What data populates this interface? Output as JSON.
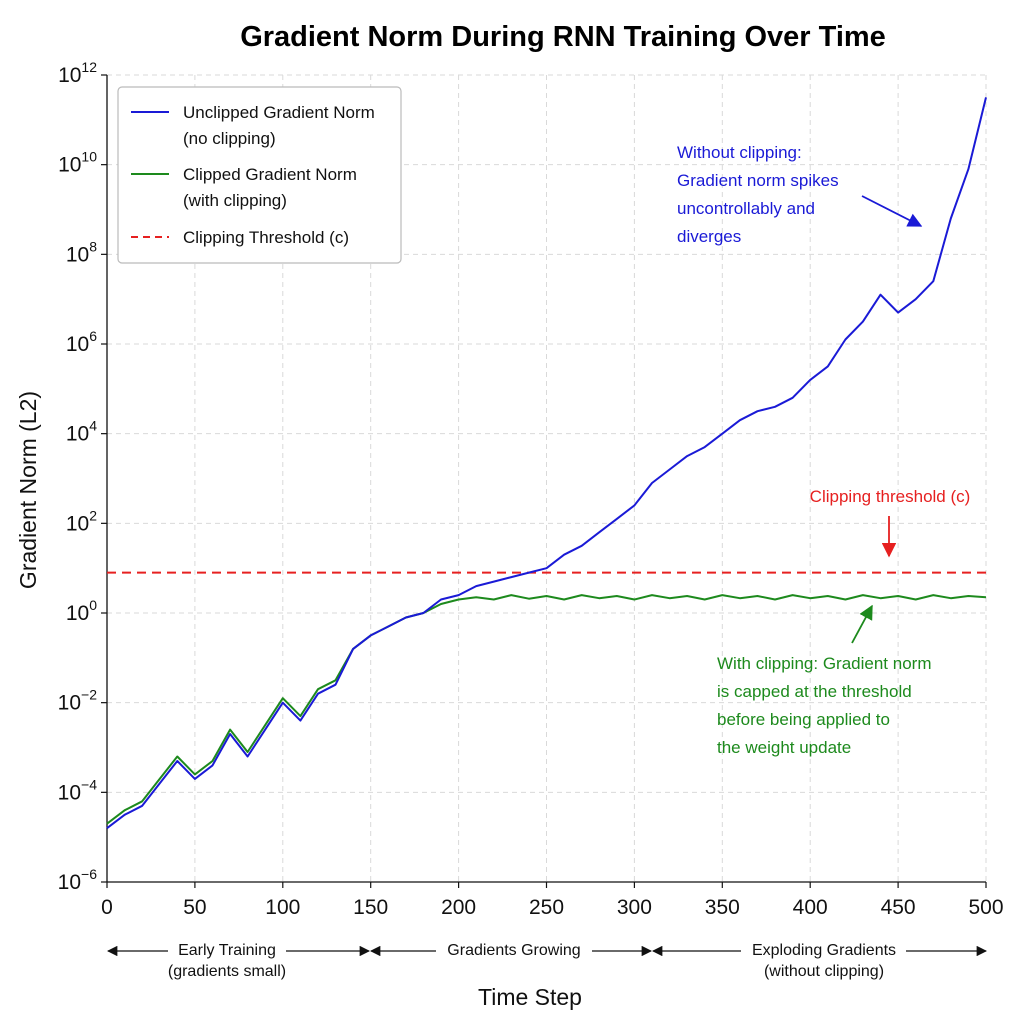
{
  "chart_data": {
    "type": "line",
    "title": "Gradient Norm During RNN Training Over Time",
    "xlabel": "Time Step",
    "ylabel": "Gradient Norm (L2)",
    "xlim": [
      0,
      500
    ],
    "ylim_log10": [
      -6,
      12
    ],
    "y_scale": "log",
    "grid": true,
    "legend_position": "top-left",
    "x_ticks": [
      0,
      50,
      100,
      150,
      200,
      250,
      300,
      350,
      400,
      450,
      500
    ],
    "y_ticks": [
      {
        "base": "10",
        "exp": "12"
      },
      {
        "base": "10",
        "exp": "10"
      },
      {
        "base": "10",
        "exp": "8"
      },
      {
        "base": "10",
        "exp": "6"
      },
      {
        "base": "10",
        "exp": "4"
      },
      {
        "base": "10",
        "exp": "2"
      },
      {
        "base": "10",
        "exp": "0"
      },
      {
        "base": "10",
        "exp": "−2"
      },
      {
        "base": "10",
        "exp": "−4"
      },
      {
        "base": "10",
        "exp": "−6"
      }
    ],
    "y_tick_log10": [
      12,
      10,
      8,
      6,
      4,
      2,
      0,
      -2,
      -4,
      -6
    ],
    "series": [
      {
        "name": "Unclipped Gradient Norm (no clipping)",
        "color": "#1a1ad6",
        "x": [
          0,
          10,
          20,
          30,
          40,
          50,
          60,
          70,
          80,
          90,
          100,
          110,
          120,
          130,
          140,
          150,
          160,
          170,
          180,
          190,
          200,
          210,
          220,
          230,
          240,
          250,
          260,
          270,
          280,
          290,
          300,
          310,
          320,
          330,
          340,
          350,
          360,
          370,
          380,
          390,
          400,
          410,
          420,
          430,
          440,
          450,
          460,
          470,
          480,
          490,
          500
        ],
        "log10_y": [
          -4.8,
          -4.5,
          -4.3,
          -3.8,
          -3.3,
          -3.7,
          -3.4,
          -2.7,
          -3.2,
          -2.6,
          -2.0,
          -2.4,
          -1.8,
          -1.6,
          -0.8,
          -0.5,
          -0.3,
          -0.1,
          0.0,
          0.3,
          0.4,
          0.6,
          0.7,
          0.8,
          0.9,
          1.0,
          1.3,
          1.5,
          1.8,
          2.1,
          2.4,
          2.9,
          3.2,
          3.5,
          3.7,
          4.0,
          4.3,
          4.5,
          4.6,
          4.8,
          5.2,
          5.5,
          6.1,
          6.5,
          7.1,
          6.7,
          7.0,
          7.4,
          8.8,
          9.9,
          11.5
        ]
      },
      {
        "name": "Clipped Gradient Norm (with clipping)",
        "color": "#1d8a1d",
        "x": [
          0,
          10,
          20,
          30,
          40,
          50,
          60,
          70,
          80,
          90,
          100,
          110,
          120,
          130,
          140,
          150,
          160,
          170,
          180,
          190,
          200,
          210,
          220,
          230,
          240,
          250,
          260,
          270,
          280,
          290,
          300,
          310,
          320,
          330,
          340,
          350,
          360,
          370,
          380,
          390,
          400,
          410,
          420,
          430,
          440,
          450,
          460,
          470,
          480,
          490,
          500
        ],
        "log10_y": [
          -4.7,
          -4.4,
          -4.2,
          -3.7,
          -3.2,
          -3.6,
          -3.3,
          -2.6,
          -3.1,
          -2.5,
          -1.9,
          -2.3,
          -1.7,
          -1.5,
          -0.8,
          -0.5,
          -0.3,
          -0.1,
          0.0,
          0.2,
          0.3,
          0.35,
          0.3,
          0.4,
          0.32,
          0.38,
          0.3,
          0.4,
          0.33,
          0.38,
          0.3,
          0.4,
          0.33,
          0.38,
          0.3,
          0.4,
          0.33,
          0.38,
          0.3,
          0.4,
          0.33,
          0.38,
          0.3,
          0.4,
          0.33,
          0.38,
          0.3,
          0.4,
          0.33,
          0.38,
          0.35
        ]
      }
    ],
    "threshold": {
      "name": "Clipping Threshold (c)",
      "color": "#e62020",
      "log10_y": 0.9
    },
    "legend": [
      {
        "line1": "Unclipped Gradient Norm",
        "line2": "(no clipping)",
        "color": "#1a1ad6",
        "dashed": false
      },
      {
        "line1": "Clipped Gradient Norm",
        "line2": "(with clipping)",
        "color": "#1d8a1d",
        "dashed": false
      },
      {
        "line1": "Clipping Threshold (c)",
        "line2": "",
        "color": "#e62020",
        "dashed": true
      }
    ],
    "annotations": {
      "unclipped_lines": [
        "Without clipping:",
        "Gradient norm spikes",
        "uncontrollably and",
        "diverges"
      ],
      "threshold_label": "Clipping threshold (c)",
      "clipped_lines": [
        "With clipping: Gradient norm",
        "is capped at the threshold",
        "before being applied to",
        "the weight update"
      ]
    },
    "phases": [
      {
        "line1": "Early Training",
        "line2": "(gradients small)",
        "x_start": 0,
        "x_end": 150
      },
      {
        "line1": "Gradients Growing",
        "line2": "",
        "x_start": 150,
        "x_end": 315
      },
      {
        "line1": "Exploding Gradients",
        "line2": "(without clipping)",
        "x_start": 315,
        "x_end": 500
      }
    ]
  }
}
